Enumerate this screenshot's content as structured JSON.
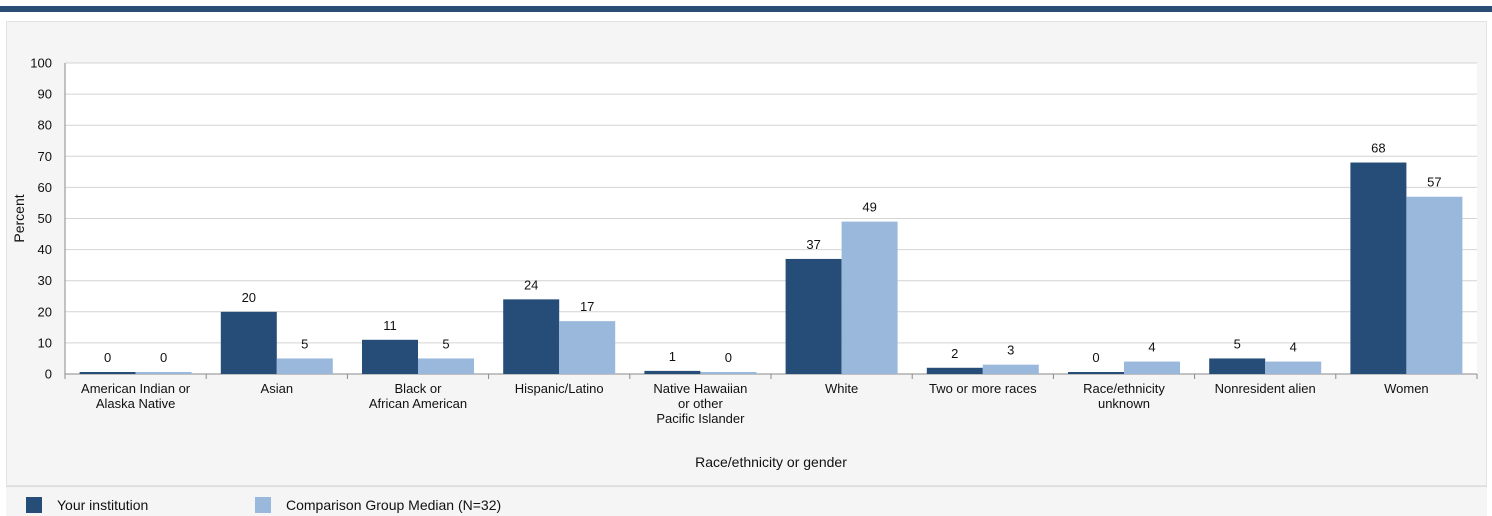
{
  "colors": {
    "accent_bar": "#2b4e77",
    "your_institution": "#264d77",
    "comparison": "#9ab8dc",
    "grid": "#d4d4d4",
    "panel": "#f5f5f5"
  },
  "chart_data": {
    "type": "bar",
    "ylabel": "Percent",
    "xlabel": "Race/ethnicity or gender",
    "ylim": [
      0,
      100
    ],
    "yticks": [
      0,
      10,
      20,
      30,
      40,
      50,
      60,
      70,
      80,
      90,
      100
    ],
    "grid": true,
    "legend_position": "bottom-left",
    "categories": [
      "American Indian or Alaska Native",
      "Asian",
      "Black or African American",
      "Hispanic/Latino",
      "Native Hawaiian or other Pacific Islander",
      "White",
      "Two or more races",
      "Race/ethnicity unknown",
      "Nonresident alien",
      "Women"
    ],
    "category_lines": [
      [
        "American Indian or",
        "Alaska Native"
      ],
      [
        "Asian"
      ],
      [
        "Black or",
        "African American"
      ],
      [
        "Hispanic/Latino"
      ],
      [
        "Native Hawaiian",
        "or other",
        "Pacific Islander"
      ],
      [
        "White"
      ],
      [
        "Two or more races"
      ],
      [
        "Race/ethnicity",
        "unknown"
      ],
      [
        "Nonresident alien"
      ],
      [
        "Women"
      ]
    ],
    "series": [
      {
        "name": "Your institution",
        "values": [
          0,
          20,
          11,
          24,
          1,
          37,
          2,
          0,
          5,
          68
        ]
      },
      {
        "name": "Comparison Group Median (N=32)",
        "values": [
          0,
          5,
          5,
          17,
          0,
          49,
          3,
          4,
          4,
          57
        ]
      }
    ]
  }
}
